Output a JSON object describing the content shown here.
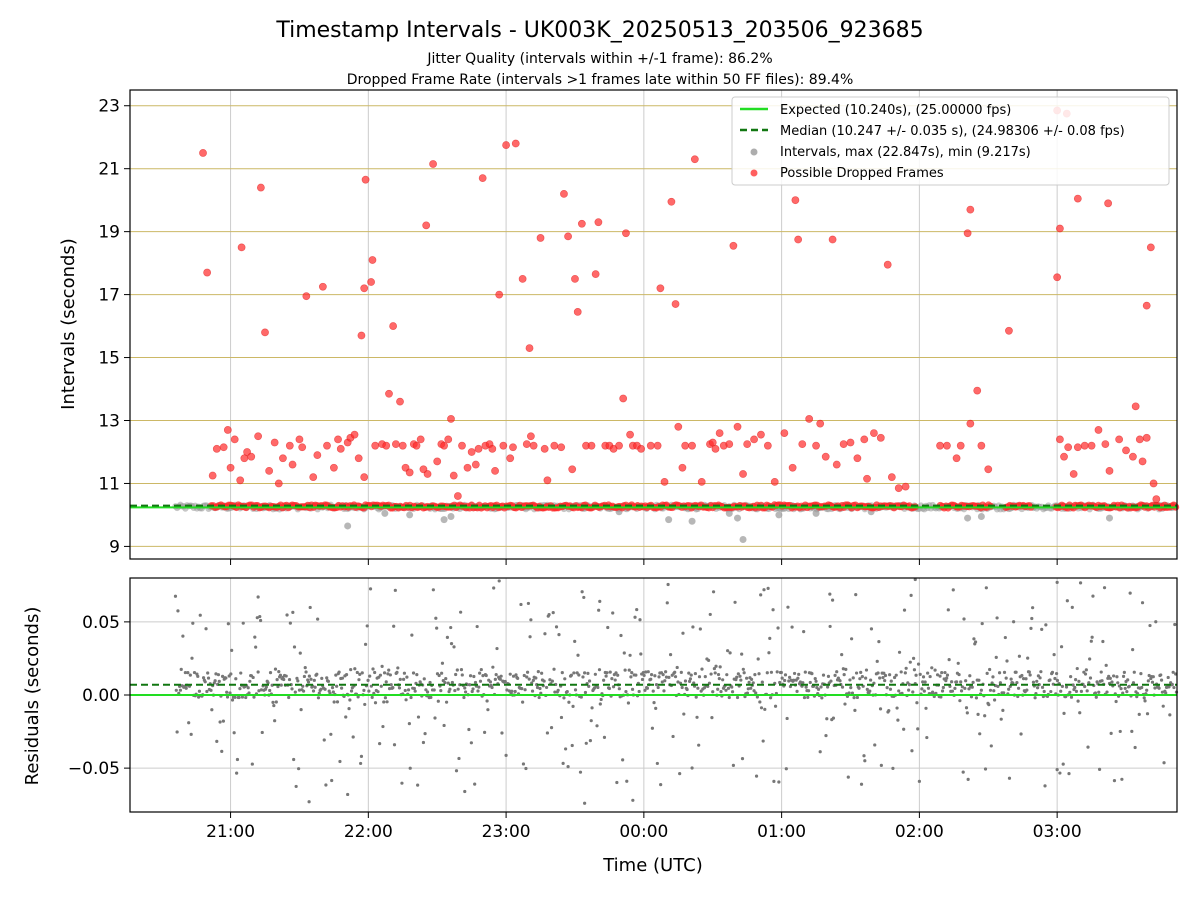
{
  "title": "Timestamp Intervals - UK003K_20250513_203506_923685",
  "subtitle1": "Jitter Quality (intervals within +/-1 frame): 86.2%",
  "subtitle2": "Dropped Frame Rate (intervals >1 frames late within 50 FF files): 89.4%",
  "colors": {
    "expected": "#22dd22",
    "median": "#117711",
    "intervals": "#999999",
    "dropped": "#ff2a2a",
    "hgrid": "#ccb866",
    "grid": "#cccccc",
    "residual": "#777777"
  },
  "chart_data": [
    {
      "type": "scatter",
      "xlabel": "",
      "ylabel": "Intervals (seconds)",
      "x_unit": "hours of UTC time (20.0 = 20:00, 24.0 = 00:00 next day)",
      "xlim": [
        20.27,
        27.87
      ],
      "ylim": [
        8.6,
        23.5
      ],
      "yticks": [
        "9",
        "11",
        "13",
        "15",
        "17",
        "19",
        "21",
        "23"
      ],
      "xtick_values": [
        21,
        22,
        23,
        24,
        25,
        26,
        27
      ],
      "grid": "horizontal gold lines, vertical gray lines",
      "legend_position": "top-right",
      "legend": {
        "expected": "Expected (10.240s), (25.00000 fps)",
        "median": "Median (10.247 +/- 0.035 s), (24.98306 +/- 0.08 fps)",
        "intervals": "Intervals, max (22.847s), min (9.217s)",
        "dropped": "Possible Dropped Frames"
      },
      "expected_value": 10.24,
      "median_value": 10.247,
      "time_range_start": 20.6,
      "time_range_end": 27.87,
      "baseline_band": [
        10.18,
        10.32
      ],
      "dropped_baseline_range": [
        20.86,
        27.87
      ],
      "interval_outliers": [
        [
          21.85,
          9.65
        ],
        [
          22.12,
          10.05
        ],
        [
          22.3,
          10.0
        ],
        [
          22.55,
          9.85
        ],
        [
          22.6,
          9.95
        ],
        [
          23.82,
          10.1
        ],
        [
          24.18,
          9.85
        ],
        [
          24.35,
          9.8
        ],
        [
          24.62,
          10.05
        ],
        [
          24.68,
          9.9
        ],
        [
          24.72,
          9.22
        ],
        [
          24.98,
          10.0
        ],
        [
          25.25,
          10.05
        ],
        [
          25.65,
          10.1
        ],
        [
          26.35,
          9.9
        ],
        [
          26.45,
          9.95
        ],
        [
          27.38,
          9.9
        ]
      ],
      "dropped_points": [
        [
          20.8,
          21.5
        ],
        [
          20.83,
          17.7
        ],
        [
          21.08,
          18.5
        ],
        [
          21.22,
          20.4
        ],
        [
          21.25,
          15.8
        ],
        [
          21.55,
          16.95
        ],
        [
          21.67,
          17.25
        ],
        [
          21.97,
          17.2
        ],
        [
          21.98,
          20.65
        ],
        [
          22.02,
          17.4
        ],
        [
          22.03,
          18.1
        ],
        [
          21.95,
          15.7
        ],
        [
          22.18,
          16.0
        ],
        [
          22.23,
          13.6
        ],
        [
          22.15,
          13.85
        ],
        [
          22.42,
          19.2
        ],
        [
          22.47,
          21.15
        ],
        [
          22.6,
          13.05
        ],
        [
          22.83,
          20.7
        ],
        [
          22.95,
          17.0
        ],
        [
          23.0,
          21.75
        ],
        [
          23.07,
          21.8
        ],
        [
          23.12,
          17.5
        ],
        [
          23.17,
          15.3
        ],
        [
          23.25,
          18.8
        ],
        [
          23.42,
          20.2
        ],
        [
          23.45,
          18.85
        ],
        [
          23.5,
          17.5
        ],
        [
          23.52,
          16.45
        ],
        [
          23.55,
          19.25
        ],
        [
          23.65,
          17.65
        ],
        [
          23.67,
          19.3
        ],
        [
          23.87,
          18.95
        ],
        [
          23.85,
          13.7
        ],
        [
          24.12,
          17.2
        ],
        [
          24.2,
          19.95
        ],
        [
          24.23,
          16.7
        ],
        [
          24.37,
          21.3
        ],
        [
          24.65,
          18.55
        ],
        [
          25.1,
          20.0
        ],
        [
          25.12,
          18.75
        ],
        [
          25.37,
          18.75
        ],
        [
          25.77,
          17.95
        ],
        [
          26.37,
          19.7
        ],
        [
          26.35,
          18.95
        ],
        [
          26.42,
          13.95
        ],
        [
          26.37,
          12.9
        ],
        [
          26.65,
          15.85
        ],
        [
          27.0,
          22.85
        ],
        [
          27.07,
          22.75
        ],
        [
          27.0,
          17.55
        ],
        [
          27.02,
          19.1
        ],
        [
          27.15,
          20.05
        ],
        [
          27.37,
          19.9
        ],
        [
          27.57,
          13.45
        ],
        [
          27.65,
          16.65
        ],
        [
          27.68,
          18.5
        ],
        [
          20.87,
          11.25
        ],
        [
          20.9,
          12.1
        ],
        [
          20.95,
          12.15
        ],
        [
          20.98,
          12.7
        ],
        [
          21.0,
          11.5
        ],
        [
          21.03,
          12.4
        ],
        [
          21.07,
          11.1
        ],
        [
          21.1,
          11.8
        ],
        [
          21.12,
          12.0
        ],
        [
          21.15,
          11.85
        ],
        [
          21.2,
          12.5
        ],
        [
          21.28,
          11.4
        ],
        [
          21.32,
          12.3
        ],
        [
          21.35,
          11.0
        ],
        [
          21.38,
          11.8
        ],
        [
          21.43,
          12.2
        ],
        [
          21.45,
          11.6
        ],
        [
          21.5,
          12.4
        ],
        [
          21.52,
          12.15
        ],
        [
          21.6,
          11.2
        ],
        [
          21.63,
          11.9
        ],
        [
          21.7,
          12.2
        ],
        [
          21.75,
          11.5
        ],
        [
          21.78,
          12.4
        ],
        [
          21.8,
          12.1
        ],
        [
          21.85,
          12.3
        ],
        [
          21.87,
          12.45
        ],
        [
          21.9,
          12.55
        ],
        [
          21.93,
          11.8
        ],
        [
          21.97,
          11.2
        ],
        [
          22.05,
          12.2
        ],
        [
          22.1,
          12.25
        ],
        [
          22.13,
          12.2
        ],
        [
          22.2,
          12.25
        ],
        [
          22.25,
          12.2
        ],
        [
          22.27,
          11.5
        ],
        [
          22.3,
          11.35
        ],
        [
          22.33,
          12.25
        ],
        [
          22.35,
          12.2
        ],
        [
          22.38,
          12.4
        ],
        [
          22.4,
          11.45
        ],
        [
          22.43,
          11.3
        ],
        [
          22.5,
          11.7
        ],
        [
          22.53,
          12.25
        ],
        [
          22.55,
          12.2
        ],
        [
          22.58,
          12.4
        ],
        [
          22.62,
          11.25
        ],
        [
          22.65,
          10.6
        ],
        [
          22.68,
          12.2
        ],
        [
          22.72,
          11.5
        ],
        [
          22.75,
          12.0
        ],
        [
          22.78,
          11.6
        ],
        [
          22.8,
          12.1
        ],
        [
          22.85,
          12.2
        ],
        [
          22.88,
          12.25
        ],
        [
          22.9,
          12.1
        ],
        [
          22.92,
          11.4
        ],
        [
          22.98,
          12.2
        ],
        [
          23.03,
          11.8
        ],
        [
          23.05,
          12.15
        ],
        [
          23.15,
          12.25
        ],
        [
          23.18,
          12.5
        ],
        [
          23.2,
          12.2
        ],
        [
          23.28,
          12.1
        ],
        [
          23.3,
          11.1
        ],
        [
          23.35,
          12.2
        ],
        [
          23.4,
          12.15
        ],
        [
          23.48,
          11.45
        ],
        [
          23.58,
          12.2
        ],
        [
          23.62,
          12.2
        ],
        [
          23.72,
          12.2
        ],
        [
          23.75,
          12.2
        ],
        [
          23.78,
          12.1
        ],
        [
          23.82,
          12.2
        ],
        [
          23.9,
          12.55
        ],
        [
          23.92,
          12.2
        ],
        [
          23.95,
          12.2
        ],
        [
          23.98,
          12.1
        ],
        [
          24.05,
          12.2
        ],
        [
          24.1,
          12.2
        ],
        [
          24.15,
          11.05
        ],
        [
          24.25,
          12.8
        ],
        [
          24.28,
          11.5
        ],
        [
          24.3,
          12.2
        ],
        [
          24.35,
          12.2
        ],
        [
          24.42,
          11.05
        ],
        [
          24.48,
          12.25
        ],
        [
          24.5,
          12.3
        ],
        [
          24.52,
          12.1
        ],
        [
          24.55,
          12.6
        ],
        [
          24.58,
          12.2
        ],
        [
          24.62,
          12.25
        ],
        [
          24.68,
          12.8
        ],
        [
          24.72,
          11.3
        ],
        [
          24.75,
          12.25
        ],
        [
          24.8,
          12.4
        ],
        [
          24.85,
          12.55
        ],
        [
          24.9,
          12.2
        ],
        [
          24.95,
          11.05
        ],
        [
          25.02,
          12.6
        ],
        [
          25.08,
          11.5
        ],
        [
          25.15,
          12.25
        ],
        [
          25.2,
          13.05
        ],
        [
          25.25,
          12.2
        ],
        [
          25.28,
          12.9
        ],
        [
          25.32,
          11.85
        ],
        [
          25.4,
          11.6
        ],
        [
          25.45,
          12.25
        ],
        [
          25.5,
          12.3
        ],
        [
          25.55,
          11.8
        ],
        [
          25.6,
          12.4
        ],
        [
          25.62,
          11.15
        ],
        [
          25.67,
          12.6
        ],
        [
          25.72,
          12.45
        ],
        [
          25.8,
          11.2
        ],
        [
          25.85,
          10.85
        ],
        [
          25.9,
          10.9
        ],
        [
          26.15,
          12.2
        ],
        [
          26.2,
          12.2
        ],
        [
          26.27,
          11.8
        ],
        [
          26.3,
          12.2
        ],
        [
          26.45,
          12.2
        ],
        [
          26.5,
          11.45
        ],
        [
          27.02,
          12.4
        ],
        [
          27.05,
          11.85
        ],
        [
          27.08,
          12.15
        ],
        [
          27.12,
          11.3
        ],
        [
          27.15,
          12.15
        ],
        [
          27.2,
          12.2
        ],
        [
          27.25,
          12.2
        ],
        [
          27.3,
          12.7
        ],
        [
          27.35,
          12.25
        ],
        [
          27.38,
          11.4
        ],
        [
          27.45,
          12.4
        ],
        [
          27.5,
          12.05
        ],
        [
          27.55,
          11.85
        ],
        [
          27.6,
          12.4
        ],
        [
          27.62,
          11.7
        ],
        [
          27.65,
          12.45
        ],
        [
          27.7,
          11.0
        ],
        [
          27.72,
          10.5
        ],
        [
          27.78,
          10.3
        ]
      ]
    },
    {
      "type": "scatter",
      "xlabel": "Time (UTC)",
      "ylabel": "Residuals (seconds)",
      "xlim": [
        20.27,
        27.87
      ],
      "ylim": [
        -0.08,
        0.08
      ],
      "yticks": [
        "−0.05",
        "0.00",
        "0.05"
      ],
      "xticks": [
        "21:00",
        "22:00",
        "23:00",
        "00:00",
        "01:00",
        "02:00",
        "03:00"
      ],
      "xtick_values": [
        21,
        22,
        23,
        24,
        25,
        26,
        27
      ],
      "expected_residual": 0.0,
      "median_residual": 0.007,
      "time_range_start": 20.6,
      "time_range_end": 27.87,
      "core_band": [
        -0.002,
        0.016
      ],
      "spread_range": [
        -0.075,
        0.078
      ],
      "notable_points": [
        [
          21.57,
          -0.073
        ],
        [
          21.85,
          -0.068
        ],
        [
          22.7,
          -0.066
        ],
        [
          22.95,
          0.078
        ],
        [
          23.57,
          -0.074
        ],
        [
          23.92,
          -0.072
        ],
        [
          25.97,
          0.079
        ],
        [
          27.0,
          0.077
        ],
        [
          27.0,
          -0.051
        ],
        [
          21.2,
          0.067
        ],
        [
          23.68,
          0.064
        ],
        [
          25.35,
          0.069
        ]
      ]
    }
  ]
}
